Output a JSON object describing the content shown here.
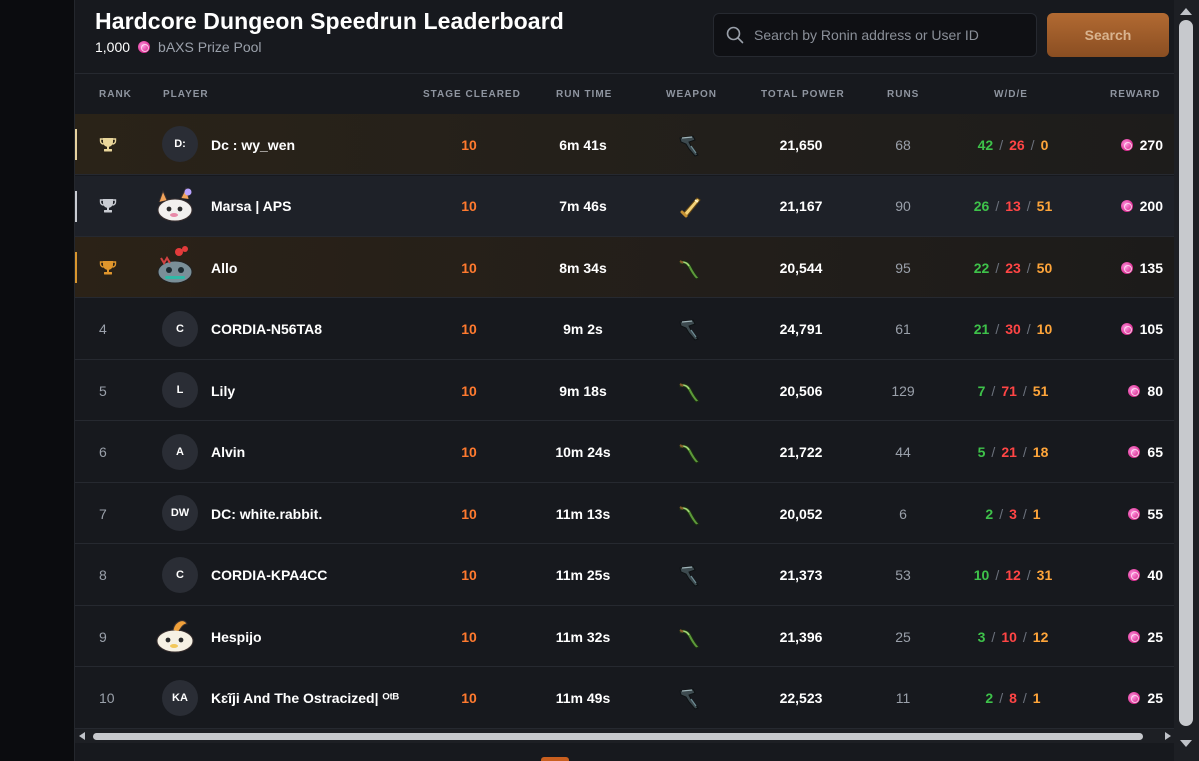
{
  "header": {
    "title": "Hardcore Dungeon Speedrun Leaderboard",
    "prize_amount": "1,000",
    "prize_label": "bAXS Prize Pool"
  },
  "search": {
    "placeholder": "Search by Ronin address or User ID",
    "value": "",
    "button_label": "Search"
  },
  "columns": {
    "rank": "RANK",
    "player": "PLAYER",
    "stage": "STAGE CLEARED",
    "runtime": "RUN TIME",
    "weapon": "WEAPON",
    "power": "TOTAL POWER",
    "runs": "RUNS",
    "wde": "W/D/E",
    "reward": "REWARD"
  },
  "colors": {
    "stage_orange": "#ff7a2f",
    "win_green": "#3ec24a",
    "draw_red": "#ff4545",
    "escape_orange": "#ffa53a",
    "bAXS_pink": "#d9298f"
  },
  "rows": [
    {
      "rank": "1",
      "trophy": "gold-trophy-icon",
      "avatar_type": "initials",
      "initials": "D:",
      "name": "Dc : wy_wen",
      "stage": "10",
      "runtime": "6m 41s",
      "weapon": "dark-revolver-icon",
      "power": "21,650",
      "runs": "68",
      "w": "42",
      "d": "26",
      "e": "0",
      "reward": "270"
    },
    {
      "rank": "2",
      "trophy": "silver-trophy-icon",
      "avatar_type": "axie",
      "axie": "white-fox-axie-icon",
      "initials": "",
      "name": "Marsa | APS",
      "stage": "10",
      "runtime": "7m 46s",
      "weapon": "golden-dagger-icon",
      "power": "21,167",
      "runs": "90",
      "w": "26",
      "d": "13",
      "e": "51",
      "reward": "200"
    },
    {
      "rank": "3",
      "trophy": "bronze-trophy-icon",
      "avatar_type": "axie",
      "axie": "gray-crab-axie-icon",
      "initials": "",
      "name": "Allo",
      "stage": "10",
      "runtime": "8m 34s",
      "weapon": "green-boomerang-icon",
      "power": "20,544",
      "runs": "95",
      "w": "22",
      "d": "23",
      "e": "50",
      "reward": "135"
    },
    {
      "rank": "4",
      "trophy": "",
      "avatar_type": "initials",
      "initials": "C",
      "name": "CORDIA-N56TA8",
      "stage": "10",
      "runtime": "9m 2s",
      "weapon": "dark-revolver-icon",
      "power": "24,791",
      "runs": "61",
      "w": "21",
      "d": "30",
      "e": "10",
      "reward": "105"
    },
    {
      "rank": "5",
      "trophy": "",
      "avatar_type": "initials",
      "initials": "L",
      "name": "Lily",
      "stage": "10",
      "runtime": "9m 18s",
      "weapon": "green-boomerang-icon",
      "power": "20,506",
      "runs": "129",
      "w": "7",
      "d": "71",
      "e": "51",
      "reward": "80"
    },
    {
      "rank": "6",
      "trophy": "",
      "avatar_type": "initials",
      "initials": "A",
      "name": "Alvin",
      "stage": "10",
      "runtime": "10m 24s",
      "weapon": "green-boomerang-icon",
      "power": "21,722",
      "runs": "44",
      "w": "5",
      "d": "21",
      "e": "18",
      "reward": "65"
    },
    {
      "rank": "7",
      "trophy": "",
      "avatar_type": "initials",
      "initials": "DW",
      "name": "DC: white.rabbit.",
      "stage": "10",
      "runtime": "11m 13s",
      "weapon": "green-boomerang-icon",
      "power": "20,052",
      "runs": "6",
      "w": "2",
      "d": "3",
      "e": "1",
      "reward": "55"
    },
    {
      "rank": "8",
      "trophy": "",
      "avatar_type": "initials",
      "initials": "C",
      "name": "CORDIA-KPA4CC",
      "stage": "10",
      "runtime": "11m 25s",
      "weapon": "dark-revolver-icon",
      "power": "21,373",
      "runs": "53",
      "w": "10",
      "d": "12",
      "e": "31",
      "reward": "40"
    },
    {
      "rank": "9",
      "trophy": "",
      "avatar_type": "axie",
      "axie": "cream-bird-axie-icon",
      "initials": "",
      "name": "Hespijo",
      "stage": "10",
      "runtime": "11m 32s",
      "weapon": "green-boomerang-icon",
      "power": "21,396",
      "runs": "25",
      "w": "3",
      "d": "10",
      "e": "12",
      "reward": "25"
    },
    {
      "rank": "10",
      "trophy": "",
      "avatar_type": "initials",
      "initials": "KA",
      "name": "Kɛĩji And The Ostracized| ᴼᵗᴮ",
      "stage": "10",
      "runtime": "11m 49s",
      "weapon": "dark-revolver-icon",
      "power": "22,523",
      "runs": "11",
      "w": "2",
      "d": "8",
      "e": "1",
      "reward": "25"
    }
  ]
}
